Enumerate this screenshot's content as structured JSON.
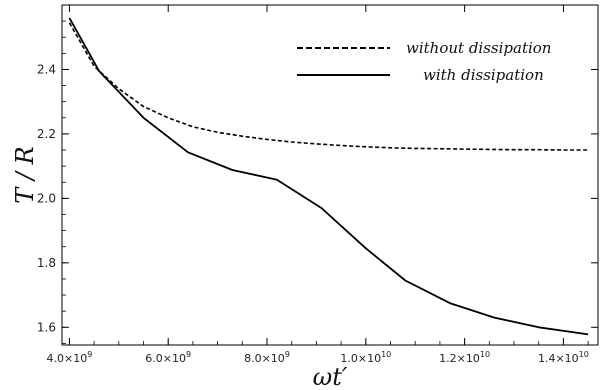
{
  "chart_data": {
    "type": "line",
    "title": "",
    "xlabel": "ωt′",
    "ylabel": "T / R",
    "xlim": [
      3850000000.0,
      14700000000.0
    ],
    "ylim": [
      1.545,
      2.6
    ],
    "x_ticks": [
      {
        "value": 4000000000.0,
        "mantissa": "4.0",
        "exp": "9"
      },
      {
        "value": 6000000000.0,
        "mantissa": "6.0",
        "exp": "9"
      },
      {
        "value": 8000000000.0,
        "mantissa": "8.0",
        "exp": "9"
      },
      {
        "value": 10000000000.0,
        "mantissa": "1.0",
        "exp": "10"
      },
      {
        "value": 12000000000.0,
        "mantissa": "1.2",
        "exp": "10"
      },
      {
        "value": 14000000000.0,
        "mantissa": "1.4",
        "exp": "10"
      }
    ],
    "y_ticks": [
      1.6,
      1.8,
      2.0,
      2.2,
      2.4
    ],
    "y_tick_labels": [
      "1.6",
      "1.8",
      "2.0",
      "2.2",
      "2.4"
    ],
    "times_sign": "×",
    "exp_base": "10",
    "legend_position": "top-right",
    "grid": false,
    "series": [
      {
        "name": "without dissipation",
        "style": "dashed",
        "color": "#000000",
        "x": [
          4000000000.0,
          4500000000.0,
          5000000000.0,
          5500000000.0,
          6000000000.0,
          6500000000.0,
          7000000000.0,
          7500000000.0,
          8000000000.0,
          8500000000.0,
          9000000000.0,
          9500000000.0,
          10000000000.0,
          10500000000.0,
          11000000000.0,
          11500000000.0,
          12000000000.0,
          12500000000.0,
          13000000000.0,
          13500000000.0,
          14000000000.0,
          14500000000.0
        ],
        "y": [
          2.545,
          2.41,
          2.34,
          2.285,
          2.25,
          2.222,
          2.205,
          2.193,
          2.183,
          2.175,
          2.169,
          2.164,
          2.16,
          2.157,
          2.155,
          2.154,
          2.153,
          2.152,
          2.151,
          2.151,
          2.15,
          2.15
        ]
      },
      {
        "name": "with dissipation",
        "style": "solid",
        "color": "#000000",
        "x": [
          4000000000.0,
          4600000000.0,
          5500000000.0,
          6400000000.0,
          7300000000.0,
          8200000000.0,
          9100000000.0,
          10000000000.0,
          10800000000.0,
          11700000000.0,
          12600000000.0,
          13500000000.0,
          14500000000.0
        ],
        "y": [
          2.56,
          2.395,
          2.25,
          2.143,
          2.088,
          2.058,
          1.97,
          1.845,
          1.745,
          1.675,
          1.63,
          1.6,
          1.578
        ]
      }
    ]
  }
}
